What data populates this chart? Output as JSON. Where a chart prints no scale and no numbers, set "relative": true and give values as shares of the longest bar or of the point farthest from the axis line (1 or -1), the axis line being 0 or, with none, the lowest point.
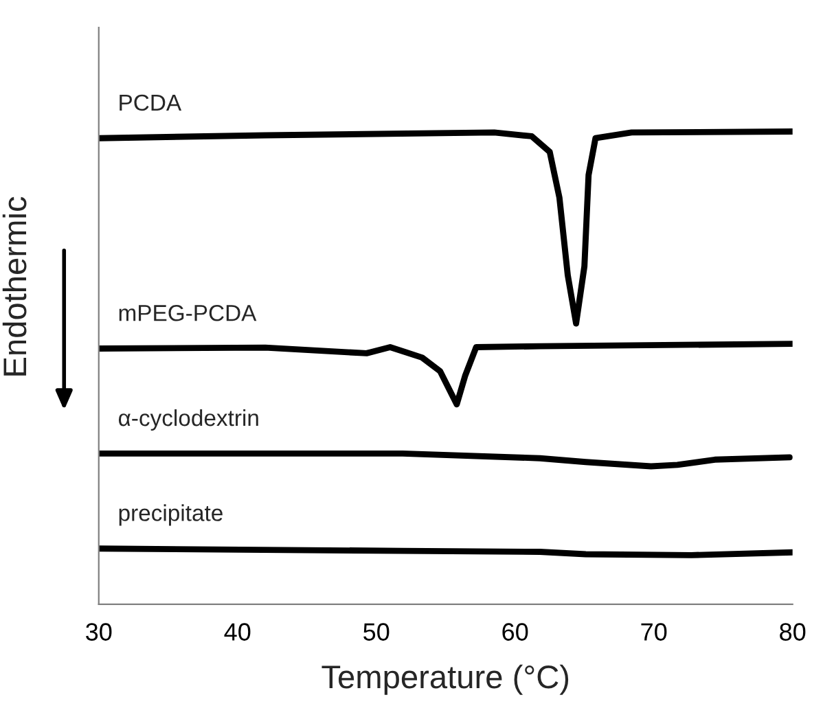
{
  "chart_data": {
    "type": "line",
    "relative": true,
    "xlabel": "Temperature (°C)",
    "ylabel": "Endothermic",
    "xlim": [
      30,
      80
    ],
    "xticks": [
      30,
      40,
      50,
      60,
      70,
      80
    ],
    "grid": false,
    "legend": false,
    "marker": "none",
    "line_style": "solid",
    "series": [
      {
        "name": "PCDA",
        "color": "#000000",
        "x": [
          30,
          42.0,
          58.5,
          61.2,
          62.5,
          63.2,
          63.8,
          64.4,
          65.0,
          65.3,
          65.8,
          68.4,
          80
        ],
        "values": [
          0.986,
          0.992,
          0.998,
          0.99,
          0.957,
          0.86,
          0.696,
          0.594,
          0.715,
          0.908,
          0.986,
          0.998,
          1.0
        ]
      },
      {
        "name": "mPEG-PCDA",
        "color": "#000000",
        "x": [
          30,
          42.0,
          49.3,
          51.0,
          53.3,
          54.6,
          55.8,
          56.4,
          57.2,
          61.8,
          80
        ],
        "values": [
          0.541,
          0.543,
          0.531,
          0.544,
          0.522,
          0.493,
          0.423,
          0.483,
          0.544,
          0.546,
          0.551
        ]
      },
      {
        "name": "α-cyclodextrin",
        "color": "#000000",
        "x": [
          30,
          51.9,
          61.8,
          65.1,
          69.8,
          71.7,
          74.4,
          79.8
        ],
        "values": [
          0.319,
          0.319,
          0.309,
          0.301,
          0.292,
          0.295,
          0.306,
          0.311
        ]
      },
      {
        "name": "precipitate",
        "color": "#000000",
        "x": [
          30,
          51.9,
          61.8,
          65.1,
          72.7,
          80
        ],
        "values": [
          0.118,
          0.113,
          0.111,
          0.106,
          0.104,
          0.11
        ]
      }
    ]
  }
}
